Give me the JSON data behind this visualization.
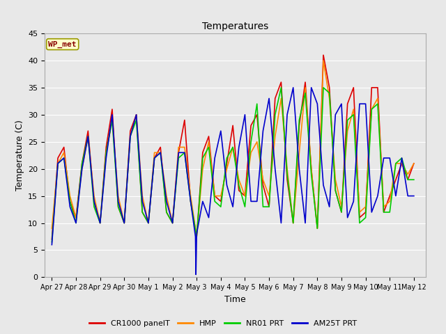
{
  "title": "Temperatures",
  "xlabel": "Time",
  "ylabel": "Temperature (C)",
  "ylim": [
    0,
    45
  ],
  "annotation_text": "WP_met",
  "annotation_bg": "#ffffcc",
  "annotation_border": "#cccc00",
  "annotation_text_color": "#880000",
  "bg_color": "#e8e8e8",
  "colors": {
    "CR1000 panelT": "#dd0000",
    "HMP": "#ff8800",
    "NR01 PRT": "#00cc00",
    "AM25T PRT": "#0000cc"
  },
  "x_tick_labels": [
    "Apr 27",
    "Apr 28",
    "Apr 29",
    "Apr 30",
    "May 1",
    "May 2",
    "May 3",
    "May 4",
    "May 5",
    "May 6",
    "May 7",
    "May 8",
    "May 9",
    "May 10",
    "May 11",
    "May 12"
  ],
  "x_tick_positions": [
    0,
    1,
    2,
    3,
    4,
    5,
    6,
    7,
    8,
    9,
    10,
    11,
    12,
    13,
    14,
    15
  ],
  "yticks": [
    0,
    5,
    10,
    15,
    20,
    25,
    30,
    35,
    40,
    45
  ],
  "series": {
    "CR1000 panelT": {
      "x": [
        0,
        0.25,
        0.5,
        0.75,
        1.0,
        1.25,
        1.5,
        1.75,
        2.0,
        2.25,
        2.5,
        2.75,
        3.0,
        3.25,
        3.5,
        3.75,
        4.0,
        4.25,
        4.5,
        4.75,
        5.0,
        5.25,
        5.5,
        5.75,
        6.0,
        6.25,
        6.5,
        6.75,
        7.0,
        7.25,
        7.5,
        7.75,
        8.0,
        8.25,
        8.5,
        8.75,
        9.0,
        9.25,
        9.5,
        9.75,
        10.0,
        10.25,
        10.5,
        10.75,
        11.0,
        11.25,
        11.5,
        11.75,
        12.0,
        12.25,
        12.5,
        12.75,
        13.0,
        13.25,
        13.5,
        13.75,
        14.0,
        14.25,
        14.5,
        14.75,
        15.0
      ],
      "y": [
        7,
        22,
        24,
        14,
        11,
        21,
        27,
        14,
        10,
        24,
        31,
        13,
        10,
        27,
        30,
        12,
        10,
        22,
        24,
        12,
        10,
        23,
        29,
        14,
        7.5,
        23,
        26,
        15,
        14,
        21,
        28,
        16,
        15,
        28,
        30,
        17,
        13,
        33,
        36,
        18,
        10,
        28,
        36,
        20,
        9,
        41,
        35,
        16,
        12,
        32,
        35,
        11,
        12,
        35,
        35,
        12,
        15,
        18,
        21,
        18,
        21
      ]
    },
    "HMP": {
      "x": [
        0,
        0.25,
        0.5,
        0.75,
        1.0,
        1.25,
        1.5,
        1.75,
        2.0,
        2.25,
        2.5,
        2.75,
        3.0,
        3.25,
        3.5,
        3.75,
        4.0,
        4.25,
        4.5,
        4.75,
        5.0,
        5.25,
        5.5,
        5.75,
        6.0,
        6.25,
        6.5,
        6.75,
        7.0,
        7.25,
        7.5,
        7.75,
        8.0,
        8.25,
        8.5,
        8.75,
        9.0,
        9.25,
        9.5,
        9.75,
        10.0,
        10.25,
        10.5,
        10.75,
        11.0,
        11.25,
        11.5,
        11.75,
        12.0,
        12.25,
        12.5,
        12.75,
        13.0,
        13.25,
        13.5,
        13.75,
        14.0,
        14.25,
        14.5,
        14.75,
        15.0
      ],
      "y": [
        9,
        21,
        23,
        15,
        11,
        20,
        26,
        15,
        10,
        23,
        29,
        15,
        10,
        26,
        30,
        15,
        10,
        23,
        23,
        15,
        10,
        24,
        24,
        15,
        7.5,
        20,
        25,
        15,
        15,
        20,
        24,
        18,
        15,
        23,
        25,
        18,
        15,
        26,
        33,
        20,
        10,
        23,
        35,
        20,
        9,
        40,
        33,
        18,
        13,
        27,
        31,
        12,
        13,
        31,
        33,
        13,
        14,
        21,
        21,
        19,
        21
      ]
    },
    "NR01 PRT": {
      "x": [
        0,
        0.25,
        0.5,
        0.75,
        1.0,
        1.25,
        1.5,
        1.75,
        2.0,
        2.25,
        2.5,
        2.75,
        3.0,
        3.25,
        3.5,
        3.75,
        4.0,
        4.25,
        4.5,
        4.75,
        5.0,
        5.25,
        5.5,
        5.75,
        6.0,
        6.25,
        6.5,
        6.75,
        7.0,
        7.25,
        7.5,
        7.75,
        8.0,
        8.25,
        8.5,
        8.75,
        9.0,
        9.25,
        9.5,
        9.75,
        10.0,
        10.25,
        10.5,
        10.75,
        11.0,
        11.25,
        11.5,
        11.75,
        12.0,
        12.25,
        12.5,
        12.75,
        13.0,
        13.25,
        13.5,
        13.75,
        14.0,
        14.25,
        14.5,
        14.75,
        15.0
      ],
      "y": [
        6.5,
        21,
        22,
        14,
        10,
        21,
        26,
        13,
        10,
        23,
        29,
        13,
        10,
        26,
        29,
        12,
        10,
        22,
        23,
        12,
        10,
        22,
        23,
        14,
        7.5,
        22,
        24,
        14,
        13,
        22,
        24,
        17,
        13,
        25,
        32,
        13,
        13,
        30,
        35,
        19,
        10,
        29,
        34,
        19,
        9,
        35,
        34,
        16,
        12,
        29,
        30,
        10,
        11,
        31,
        32,
        12,
        12,
        21,
        22,
        18,
        18
      ]
    },
    "AM25T PRT": {
      "x": [
        0,
        0.25,
        0.5,
        0.75,
        1.0,
        1.25,
        1.5,
        1.75,
        2.0,
        2.25,
        2.5,
        2.75,
        3.0,
        3.25,
        3.5,
        3.75,
        4.0,
        4.25,
        4.5,
        4.75,
        5.0,
        5.25,
        5.5,
        5.75,
        5.95,
        5.97,
        6.0,
        6.25,
        6.5,
        6.75,
        7.0,
        7.25,
        7.5,
        7.75,
        8.0,
        8.25,
        8.5,
        8.75,
        9.0,
        9.25,
        9.5,
        9.75,
        10.0,
        10.25,
        10.5,
        10.75,
        11.0,
        11.25,
        11.5,
        11.75,
        12.0,
        12.25,
        12.5,
        12.75,
        13.0,
        13.25,
        13.5,
        13.75,
        14.0,
        14.25,
        14.5,
        14.75,
        15.0
      ],
      "y": [
        6,
        21,
        22,
        13,
        10,
        20,
        26,
        14,
        10,
        22,
        30,
        14,
        10,
        26,
        30,
        14,
        10,
        22,
        23,
        14,
        10,
        23,
        23,
        14,
        7.5,
        0.5,
        8,
        14,
        11,
        22,
        27,
        17,
        13,
        24,
        30,
        14,
        14,
        27,
        33,
        20,
        10,
        30,
        35,
        20,
        10,
        35,
        32,
        17,
        13,
        30,
        32,
        11,
        14,
        32,
        32,
        12,
        15,
        22,
        22,
        15,
        22,
        15,
        15
      ]
    }
  },
  "linewidth": 1.2
}
